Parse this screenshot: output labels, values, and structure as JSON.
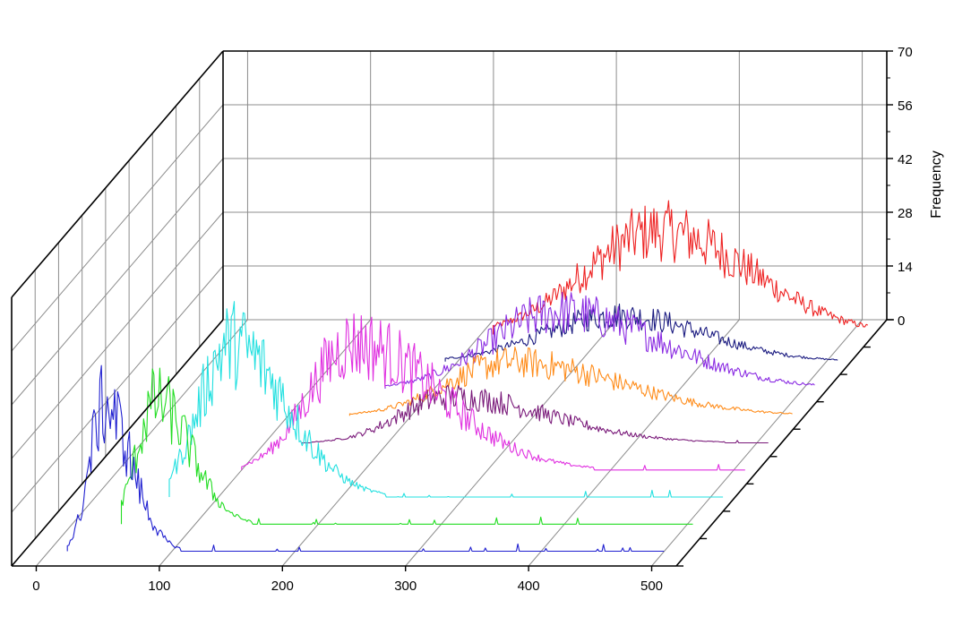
{
  "chart_data": {
    "type": "line",
    "title": "",
    "xlabel": "",
    "ylabel": "",
    "zlabel": "Frequency",
    "x_ticks": [
      "0",
      "100",
      "200",
      "300",
      "400",
      "500"
    ],
    "z_ticks": [
      "0",
      "14",
      "28",
      "42",
      "56",
      "70"
    ],
    "xlim": [
      -20,
      520
    ],
    "zlim": [
      0,
      70
    ],
    "grid": true,
    "legend": "none",
    "series": [
      {
        "color": "#2020d0",
        "peak_x": 45,
        "peak_z": 38,
        "spread_left": 12,
        "spread_right": 22,
        "x_start": 15,
        "x_end": 500
      },
      {
        "color": "#22dd22",
        "peak_x": 68,
        "peak_z": 32,
        "spread_left": 15,
        "spread_right": 28,
        "x_start": 40,
        "x_end": 505
      },
      {
        "color": "#22e0e0",
        "peak_x": 110,
        "peak_z": 40,
        "spread_left": 25,
        "spread_right": 45,
        "x_start": 60,
        "x_end": 510
      },
      {
        "color": "#e030e0",
        "peak_x": 190,
        "peak_z": 33,
        "spread_left": 35,
        "spread_right": 70,
        "x_start": 100,
        "x_end": 510
      },
      {
        "color": "#7a1a7a",
        "peak_x": 250,
        "peak_z": 12,
        "spread_left": 40,
        "spread_right": 80,
        "x_start": 130,
        "x_end": 510
      },
      {
        "color": "#ff8c1a",
        "peak_x": 280,
        "peak_z": 14,
        "spread_left": 50,
        "spread_right": 90,
        "x_start": 150,
        "x_end": 510
      },
      {
        "color": "#8a2be2",
        "peak_x": 300,
        "peak_z": 20,
        "spread_left": 55,
        "spread_right": 85,
        "x_start": 160,
        "x_end": 510
      },
      {
        "color": "#1a1a80",
        "peak_x": 330,
        "peak_z": 12,
        "spread_left": 60,
        "spread_right": 70,
        "x_start": 190,
        "x_end": 510
      },
      {
        "color": "#ee2222",
        "peak_x": 345,
        "peak_z": 27,
        "spread_left": 60,
        "spread_right": 75,
        "x_start": 210,
        "x_end": 515
      }
    ]
  }
}
